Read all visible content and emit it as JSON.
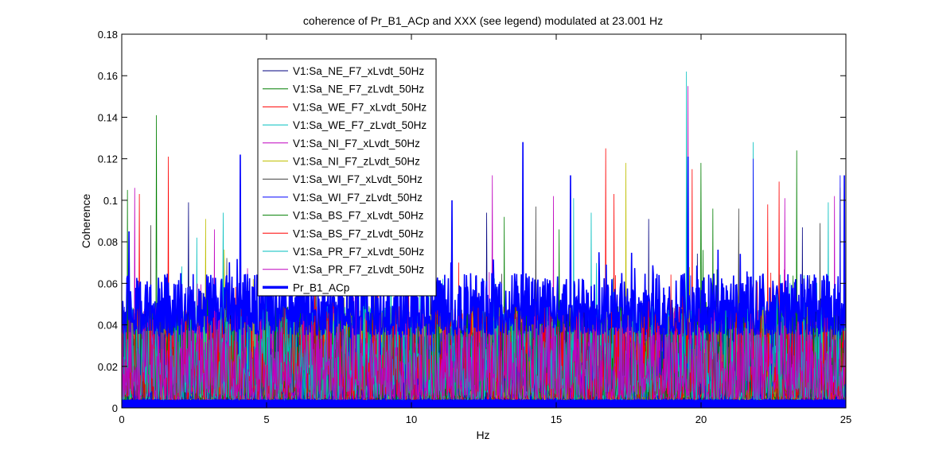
{
  "chart_data": {
    "type": "line",
    "title": "coherence of Pr_B1_ACp and XXX (see legend) modulated at 23.001 Hz",
    "xlabel": "Hz",
    "ylabel": "Coherence",
    "xlim": [
      0,
      25
    ],
    "ylim": [
      0,
      0.18
    ],
    "xticks": [
      0,
      5,
      10,
      15,
      20,
      25
    ],
    "xtick_labels": [
      "0",
      "5",
      "10",
      "15",
      "20",
      "25"
    ],
    "yticks": [
      0,
      0.02,
      0.04,
      0.06,
      0.08,
      0.1,
      0.12,
      0.14,
      0.16,
      0.18
    ],
    "ytick_labels": [
      "0",
      "0.02",
      "0.04",
      "0.06",
      "0.08",
      "0.1",
      "0.12",
      "0.14",
      "0.16",
      "0.18"
    ],
    "grid": false,
    "legend_position": "upper-left inside axes",
    "series": [
      {
        "name": "V1:Sa_NE_F7_xLvdt_50Hz",
        "color": "#00007f",
        "peaks": [
          [
            2.3,
            0.099
          ],
          [
            7.8,
            0.088
          ],
          [
            12.6,
            0.094
          ],
          [
            18.2,
            0.091
          ],
          [
            23.5,
            0.087
          ]
        ]
      },
      {
        "name": "V1:Sa_NE_F7_zLvdt_50Hz",
        "color": "#007f00",
        "peaks": [
          [
            1.2,
            0.141
          ],
          [
            6.2,
            0.081
          ],
          [
            13.2,
            0.092
          ],
          [
            20.0,
            0.118
          ],
          [
            23.3,
            0.124
          ]
        ]
      },
      {
        "name": "V1:Sa_WE_F7_xLvdt_50Hz",
        "color": "#ff0000",
        "peaks": [
          [
            1.6,
            0.121
          ],
          [
            7.3,
            0.095
          ],
          [
            16.7,
            0.125
          ],
          [
            19.7,
            0.115
          ],
          [
            22.7,
            0.109
          ]
        ]
      },
      {
        "name": "V1:Sa_WE_F7_zLvdt_50Hz",
        "color": "#00bfbf",
        "peaks": [
          [
            3.5,
            0.094
          ],
          [
            10.6,
            0.097
          ],
          [
            15.6,
            0.101
          ],
          [
            19.5,
            0.162
          ],
          [
            21.8,
            0.128
          ]
        ]
      },
      {
        "name": "V1:Sa_NI_F7_xLvdt_50Hz",
        "color": "#bf00bf",
        "peaks": [
          [
            0.45,
            0.106
          ],
          [
            4.8,
            0.091
          ],
          [
            12.8,
            0.112
          ],
          [
            19.55,
            0.155
          ],
          [
            24.6,
            0.102
          ]
        ]
      },
      {
        "name": "V1:Sa_NI_F7_zLvdt_50Hz",
        "color": "#bfbf00",
        "peaks": [
          [
            2.9,
            0.091
          ],
          [
            8.7,
            0.085
          ],
          [
            11.4,
            0.099
          ],
          [
            17.4,
            0.118
          ],
          [
            24.8,
            0.106
          ]
        ]
      },
      {
        "name": "V1:Sa_WI_F7_xLvdt_50Hz",
        "color": "#3f3f3f",
        "peaks": [
          [
            1.0,
            0.088
          ],
          [
            6.7,
            0.079
          ],
          [
            14.3,
            0.097
          ],
          [
            21.3,
            0.096
          ],
          [
            24.1,
            0.089
          ]
        ]
      },
      {
        "name": "V1:Sa_WI_F7_zLvdt_50Hz",
        "color": "#0000ff",
        "peaks": [
          [
            4.1,
            0.122
          ],
          [
            11.4,
            0.099
          ],
          [
            13.85,
            0.128
          ],
          [
            19.55,
            0.121
          ],
          [
            21.8,
            0.12
          ],
          [
            24.8,
            0.112
          ]
        ]
      },
      {
        "name": "V1:Sa_BS_F7_xLvdt_50Hz",
        "color": "#007f00",
        "peaks": [
          [
            0.2,
            0.105
          ],
          [
            5.3,
            0.084
          ],
          [
            15.1,
            0.086
          ],
          [
            20.4,
            0.096
          ]
        ]
      },
      {
        "name": "V1:Sa_BS_F7_zLvdt_50Hz",
        "color": "#ff0000",
        "peaks": [
          [
            0.6,
            0.103
          ],
          [
            9.9,
            0.092
          ],
          [
            17.0,
            0.103
          ],
          [
            22.3,
            0.098
          ]
        ]
      },
      {
        "name": "V1:Sa_PR_F7_xLvdt_50Hz",
        "color": "#00bfbf",
        "peaks": [
          [
            2.6,
            0.082
          ],
          [
            9.3,
            0.089
          ],
          [
            16.2,
            0.094
          ],
          [
            24.4,
            0.099
          ]
        ]
      },
      {
        "name": "V1:Sa_PR_F7_zLvdt_50Hz",
        "color": "#bf00bf",
        "peaks": [
          [
            3.2,
            0.086
          ],
          [
            8.1,
            0.083
          ],
          [
            14.9,
            0.102
          ],
          [
            22.9,
            0.101
          ]
        ]
      },
      {
        "name": "Pr_B1_ACp",
        "color": "#0000ff",
        "thick": true,
        "peaks": [
          [
            0.25,
            0.085
          ],
          [
            4.1,
            0.122
          ],
          [
            11.4,
            0.1
          ],
          [
            13.85,
            0.128
          ],
          [
            15.5,
            0.112
          ],
          [
            19.55,
            0.121
          ],
          [
            24.95,
            0.112
          ]
        ]
      }
    ]
  }
}
